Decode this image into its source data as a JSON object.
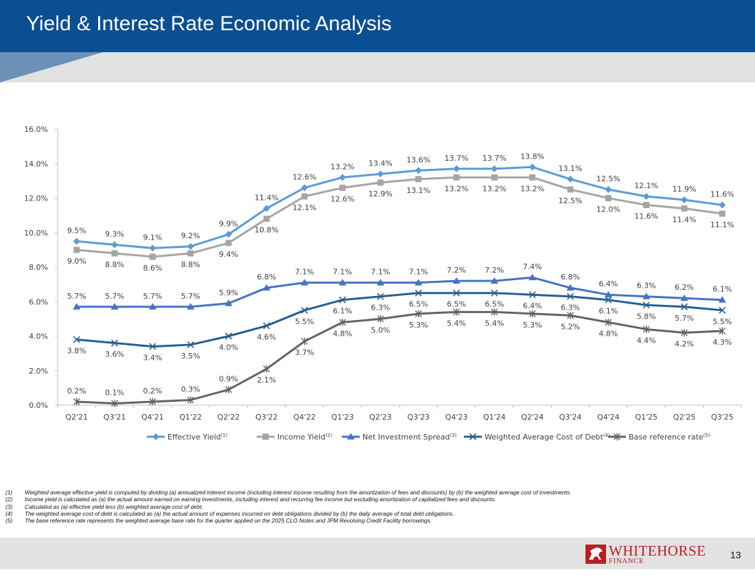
{
  "header": {
    "title": "Yield & Interest Rate Economic Analysis"
  },
  "chart_data": {
    "type": "line",
    "categories": [
      "Q2'21",
      "Q3'21",
      "Q4'21",
      "Q1'22",
      "Q2'22",
      "Q3'22",
      "Q4'22",
      "Q1'23",
      "Q2'23",
      "Q3'23",
      "Q4'23",
      "Q1'24",
      "Q2'24",
      "Q3'24",
      "Q4'24",
      "Q1'25",
      "Q2'25",
      "Q3'25"
    ],
    "ylim": [
      0,
      16
    ],
    "yticks": [
      "0.0%",
      "2.0%",
      "4.0%",
      "6.0%",
      "8.0%",
      "10.0%",
      "12.0%",
      "14.0%",
      "16.0%"
    ],
    "ytick_values": [
      0,
      2,
      4,
      6,
      8,
      10,
      12,
      14,
      16
    ],
    "legend_position": "bottom",
    "series": [
      {
        "name": "Effective Yield",
        "sup": "(1)",
        "color": "#5b9bd5",
        "marker": "diamond",
        "label_pos": "above",
        "values": [
          9.5,
          9.3,
          9.1,
          9.2,
          9.9,
          11.4,
          12.6,
          13.2,
          13.4,
          13.6,
          13.7,
          13.7,
          13.8,
          13.1,
          12.5,
          12.1,
          11.9,
          11.6
        ],
        "labels": [
          "9.5%",
          "9.3%",
          "9.1%",
          "9.2%",
          "9.9%",
          "11.4%",
          "12.6%",
          "13.2%",
          "13.4%",
          "13.6%",
          "13.7%",
          "13.7%",
          "13.8%",
          "13.1%",
          "12.5%",
          "12.1%",
          "11.9%",
          "11.6%"
        ]
      },
      {
        "name": "Income Yield",
        "sup": "(2)",
        "color": "#a5a5a5",
        "marker": "square",
        "label_pos": "below",
        "values": [
          9.0,
          8.8,
          8.6,
          8.8,
          9.4,
          10.8,
          12.1,
          12.6,
          12.9,
          13.1,
          13.2,
          13.2,
          13.2,
          12.5,
          12.0,
          11.6,
          11.4,
          11.1
        ],
        "labels": [
          "9.0%",
          "8.8%",
          "8.6%",
          "8.8%",
          "9.4%",
          "10.8%",
          "12.1%",
          "12.6%",
          "12.9%",
          "13.1%",
          "13.2%",
          "13.2%",
          "13.2%",
          "12.5%",
          "12.0%",
          "11.6%",
          "11.4%",
          "11.1%"
        ]
      },
      {
        "name": "Net Investment Spread",
        "sup": "(3)",
        "color": "#4472c4",
        "marker": "triangle",
        "label_pos": "above",
        "values": [
          5.7,
          5.7,
          5.7,
          5.7,
          5.9,
          6.8,
          7.1,
          7.1,
          7.1,
          7.1,
          7.2,
          7.2,
          7.4,
          6.8,
          6.4,
          6.3,
          6.2,
          6.1
        ],
        "labels": [
          "5.7%",
          "5.7%",
          "5.7%",
          "5.7%",
          "5.9%",
          "6.8%",
          "7.1%",
          "7.1%",
          "7.1%",
          "7.1%",
          "7.2%",
          "7.2%",
          "7.4%",
          "6.8%",
          "6.4%",
          "6.3%",
          "6.2%",
          "6.1%"
        ]
      },
      {
        "name": "Weighted Average Cost of Debt",
        "sup": "(4)",
        "color": "#255e91",
        "marker": "x",
        "label_pos": "below",
        "values": [
          3.8,
          3.6,
          3.4,
          3.5,
          4.0,
          4.6,
          5.5,
          6.1,
          6.3,
          6.5,
          6.5,
          6.5,
          6.4,
          6.3,
          6.1,
          5.8,
          5.7,
          5.5
        ],
        "labels": [
          "3.8%",
          "3.6%",
          "3.4%",
          "3.5%",
          "4.0%",
          "4.6%",
          "5.5%",
          "6.1%",
          "6.3%",
          "6.5%",
          "6.5%",
          "6.5%",
          "6.4%",
          "6.3%",
          "6.1%",
          "5.8%",
          "5.7%",
          "5.5%"
        ]
      },
      {
        "name": "Base reference rate",
        "sup": "(5)",
        "color": "#636363",
        "marker": "star",
        "label_pos": "mixed",
        "values": [
          0.2,
          0.1,
          0.2,
          0.3,
          0.9,
          2.1,
          3.7,
          4.8,
          5.0,
          5.3,
          5.4,
          5.4,
          5.3,
          5.2,
          4.8,
          4.4,
          4.2,
          4.3
        ],
        "labels": [
          "0.2%",
          "0.1%",
          "0.2%",
          "0.3%",
          "0.9%",
          "2.1%",
          "3.7%",
          "4.8%",
          "5.0%",
          "5.3%",
          "5.4%",
          "5.4%",
          "5.3%",
          "5.2%",
          "4.8%",
          "4.4%",
          "4.2%",
          "4.3%"
        ]
      }
    ]
  },
  "footnotes": [
    {
      "num": "(1)",
      "text": "Weighted average effective yield is computed by dividing (a) annualized interest income (including interest income resulting from the amortization of fees and discounts) by (b) the weighted average cost of investments."
    },
    {
      "num": "(2)",
      "text": "Income yield is calculated as (a) the actual amount earned on earning investments, including interest and recurring fee income but excluding amortization of capitalized fees and discounts."
    },
    {
      "num": "(3)",
      "text": "Calculated as (a) effective yield less (b) weighted average cost of debt."
    },
    {
      "num": "(4)",
      "text": "The weighted average cost of debt is calculated as (a) the actual amount of expenses incurred on debt obligations divided by (b) the daily average of total debt obligations."
    },
    {
      "num": "(5)",
      "text": "The base reference rate represents the weighted average base rate for the quarter applied on the 2025 CLO Notes and JPM Revolving Credit Facility borrowings."
    }
  ],
  "footer": {
    "logo_main": "WHITEHORSE",
    "logo_sub": "FINANCE",
    "logo_color": "#b52025",
    "page_number": "13"
  }
}
